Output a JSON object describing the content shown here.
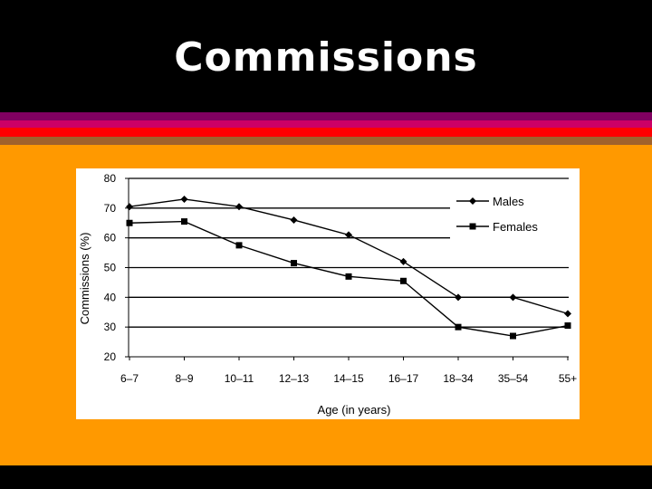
{
  "slide": {
    "title": "Commissions",
    "colors": {
      "background": "#000000",
      "panel": "#ff9900",
      "stripes": [
        "#800060",
        "#cc0066",
        "#ff0000",
        "#a0622c"
      ]
    }
  },
  "chart_data": {
    "type": "line",
    "title": "",
    "xlabel": "Age (in years)",
    "ylabel": "Commissions (%)",
    "ylim": [
      20,
      80
    ],
    "yticks": [
      20,
      30,
      40,
      50,
      60,
      70,
      80
    ],
    "grid": "horizontal",
    "legend_position": "top-right",
    "categories": [
      "6–7",
      "8–9",
      "10–11",
      "12–13",
      "14–15",
      "16–17",
      "18–34",
      "35–54",
      "55+"
    ],
    "series": [
      {
        "name": "Males",
        "marker": "diamond",
        "color": "#000000",
        "values": [
          70.5,
          73,
          70.5,
          66,
          61,
          52,
          40,
          40,
          34.5
        ]
      },
      {
        "name": "Females",
        "marker": "square",
        "color": "#000000",
        "values": [
          65,
          65.5,
          57.5,
          51.5,
          47,
          45.5,
          30,
          27,
          30.5
        ]
      }
    ]
  }
}
